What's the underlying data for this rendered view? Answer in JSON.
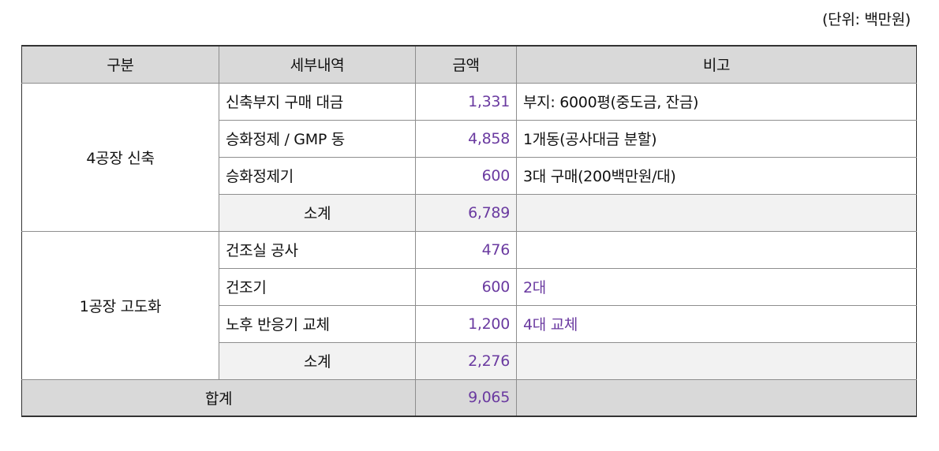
{
  "unit_note": "(단위: 백만원)",
  "headers": [
    "구분",
    "세부내역",
    "금액",
    "비고"
  ],
  "groups": [
    {
      "label": "4공장 신축",
      "rows": [
        {
          "item": "신축부지 구매 대금",
          "amount": "1,331",
          "note": "부지: 6000평(중도금, 잔금)"
        },
        {
          "item": "승화정제 / GMP 동",
          "amount": "4,858",
          "note": "1개동(공사대금 분할)"
        },
        {
          "item": "승화정제기",
          "amount": "600",
          "note": "3대 구매(200백만원/대)"
        }
      ],
      "subtotal": {
        "label": "소계",
        "amount": "6,789"
      }
    },
    {
      "label": "1공장 고도화",
      "rows": [
        {
          "item": "건조실 공사",
          "amount": "476",
          "note": ""
        },
        {
          "item": "건조기",
          "amount": "600",
          "note": "2대"
        },
        {
          "item": "노후 반응기 교체",
          "amount": "1,200",
          "note": "4대 교체"
        }
      ],
      "subtotal": {
        "label": "소계",
        "amount": "2,276"
      }
    }
  ],
  "total": {
    "label": "합계",
    "amount": "9,065"
  }
}
